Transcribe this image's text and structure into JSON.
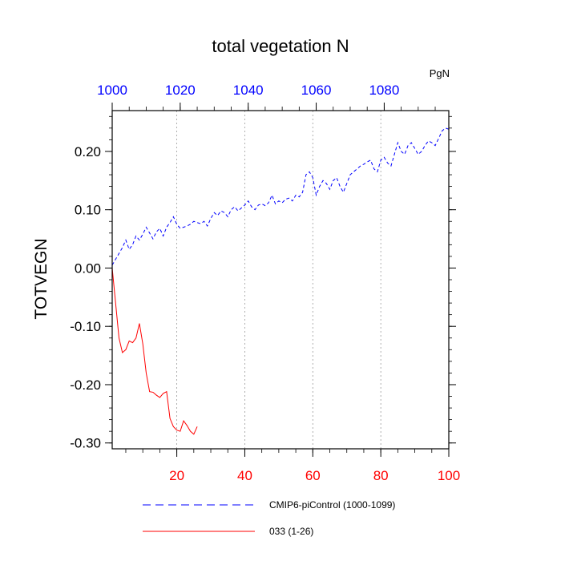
{
  "chart_data": {
    "type": "line",
    "title": "total vegetation N",
    "units": "PgN",
    "ylabel": "TOTVEGN",
    "ylim": [
      -0.31,
      0.27
    ],
    "y_ticks": [
      -0.3,
      -0.2,
      -0.1,
      0.0,
      0.1,
      0.2
    ],
    "y_tick_labels": [
      "-0.30",
      "-0.20",
      "-0.10",
      "0.00",
      "0.10",
      "0.20"
    ],
    "x_bottom": {
      "lim": [
        1,
        100
      ],
      "ticks": [
        20,
        40,
        60,
        80,
        100
      ],
      "tick_labels": [
        "20",
        "40",
        "60",
        "80",
        "100"
      ],
      "color": "#ff0000"
    },
    "x_top": {
      "lim": [
        1000,
        1099
      ],
      "ticks": [
        1000,
        1020,
        1040,
        1060,
        1080
      ],
      "tick_labels": [
        "1000",
        "1020",
        "1040",
        "1060",
        "1080"
      ],
      "color": "#0000ff"
    },
    "grid": "vertical dotted lines at bottom-axis ticks",
    "legend_position": "bottom",
    "series": [
      {
        "name": "CMIP6-piControl (1000-1099)",
        "color": "#0000ff",
        "dash": "dashed",
        "axis": "top",
        "x": [
          1000,
          1001,
          1002,
          1003,
          1004,
          1005,
          1006,
          1007,
          1008,
          1009,
          1010,
          1011,
          1012,
          1013,
          1014,
          1015,
          1016,
          1017,
          1018,
          1019,
          1020,
          1021,
          1022,
          1023,
          1024,
          1025,
          1026,
          1027,
          1028,
          1029,
          1030,
          1031,
          1032,
          1033,
          1034,
          1035,
          1036,
          1037,
          1038,
          1039,
          1040,
          1041,
          1042,
          1043,
          1044,
          1045,
          1046,
          1047,
          1048,
          1049,
          1050,
          1051,
          1052,
          1053,
          1054,
          1055,
          1056,
          1057,
          1058,
          1059,
          1060,
          1061,
          1062,
          1063,
          1064,
          1065,
          1066,
          1067,
          1068,
          1069,
          1070,
          1071,
          1072,
          1073,
          1074,
          1075,
          1076,
          1077,
          1078,
          1079,
          1080,
          1081,
          1082,
          1083,
          1084,
          1085,
          1086,
          1087,
          1088,
          1089,
          1090,
          1091,
          1092,
          1093,
          1094,
          1095,
          1096,
          1097,
          1098,
          1099
        ],
        "values": [
          0.005,
          0.015,
          0.025,
          0.035,
          0.048,
          0.032,
          0.04,
          0.055,
          0.048,
          0.058,
          0.07,
          0.06,
          0.05,
          0.062,
          0.068,
          0.055,
          0.07,
          0.078,
          0.088,
          0.075,
          0.068,
          0.07,
          0.072,
          0.075,
          0.08,
          0.078,
          0.076,
          0.08,
          0.072,
          0.085,
          0.095,
          0.09,
          0.098,
          0.095,
          0.088,
          0.1,
          0.105,
          0.098,
          0.103,
          0.108,
          0.115,
          0.105,
          0.1,
          0.108,
          0.11,
          0.107,
          0.112,
          0.125,
          0.11,
          0.115,
          0.112,
          0.118,
          0.12,
          0.115,
          0.125,
          0.122,
          0.13,
          0.16,
          0.165,
          0.155,
          0.125,
          0.14,
          0.15,
          0.145,
          0.135,
          0.15,
          0.155,
          0.14,
          0.13,
          0.145,
          0.16,
          0.165,
          0.17,
          0.175,
          0.178,
          0.182,
          0.185,
          0.17,
          0.165,
          0.185,
          0.19,
          0.18,
          0.175,
          0.195,
          0.215,
          0.2,
          0.195,
          0.21,
          0.215,
          0.205,
          0.195,
          0.2,
          0.21,
          0.218,
          0.215,
          0.21,
          0.222,
          0.235,
          0.24,
          0.238
        ]
      },
      {
        "name": "033 (1-26)",
        "color": "#ff0000",
        "dash": "solid",
        "axis": "bottom",
        "x": [
          1,
          2,
          3,
          4,
          5,
          6,
          7,
          8,
          9,
          10,
          11,
          12,
          13,
          14,
          15,
          16,
          17,
          18,
          19,
          20,
          21,
          22,
          23,
          24,
          25,
          26
        ],
        "values": [
          0.0,
          -0.06,
          -0.12,
          -0.145,
          -0.14,
          -0.125,
          -0.128,
          -0.12,
          -0.095,
          -0.13,
          -0.18,
          -0.212,
          -0.213,
          -0.218,
          -0.222,
          -0.215,
          -0.212,
          -0.258,
          -0.272,
          -0.278,
          -0.28,
          -0.262,
          -0.27,
          -0.28,
          -0.285,
          -0.272
        ]
      }
    ]
  }
}
